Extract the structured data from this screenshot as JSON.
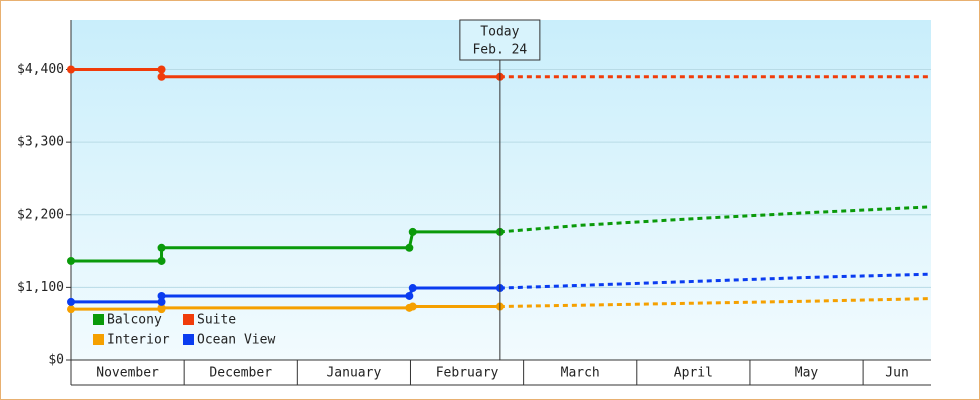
{
  "chart_data": {
    "type": "line",
    "categories": [
      "November",
      "December",
      "January",
      "February",
      "March",
      "April",
      "May",
      "Jun"
    ],
    "xlim": [
      0,
      7.6
    ],
    "ylim": [
      0,
      5150
    ],
    "yticks": [
      {
        "value": 0,
        "label": "$0"
      },
      {
        "value": 1100,
        "label": "$1,100"
      },
      {
        "value": 2200,
        "label": "$2,200"
      },
      {
        "value": 3300,
        "label": "$3,300"
      },
      {
        "value": 4400,
        "label": "$4,400"
      }
    ],
    "grid": true,
    "today": {
      "label": "Today",
      "date": "Feb. 24",
      "x": 3.79
    },
    "legend": "lower left",
    "series": [
      {
        "name": "Balcony",
        "color": "#0a9a0a",
        "x": [
          0,
          0.8,
          0.8,
          2.99,
          3.02,
          3.79,
          4.5,
          5.5,
          6.5,
          7.6
        ],
        "values": [
          1500,
          1500,
          1700,
          1700,
          1940,
          1940,
          2040,
          2140,
          2230,
          2320
        ]
      },
      {
        "name": "Suite",
        "color": "#f03c0a",
        "x": [
          0,
          0.8,
          0.8,
          3.79,
          7.6
        ],
        "values": [
          4400,
          4400,
          4290,
          4290,
          4290
        ]
      },
      {
        "name": "Interior",
        "color": "#f5a000",
        "x": [
          0,
          0.8,
          0.8,
          2.99,
          3.02,
          3.79,
          4.5,
          5.5,
          6.5,
          7.6
        ],
        "values": [
          770,
          770,
          790,
          790,
          810,
          810,
          830,
          860,
          890,
          930
        ]
      },
      {
        "name": "Ocean View",
        "color": "#0a3cf0",
        "x": [
          0,
          0.8,
          0.8,
          2.99,
          3.02,
          3.79,
          4.5,
          5.5,
          6.5,
          7.6
        ],
        "values": [
          880,
          880,
          970,
          970,
          1090,
          1090,
          1130,
          1190,
          1250,
          1300
        ]
      }
    ]
  }
}
